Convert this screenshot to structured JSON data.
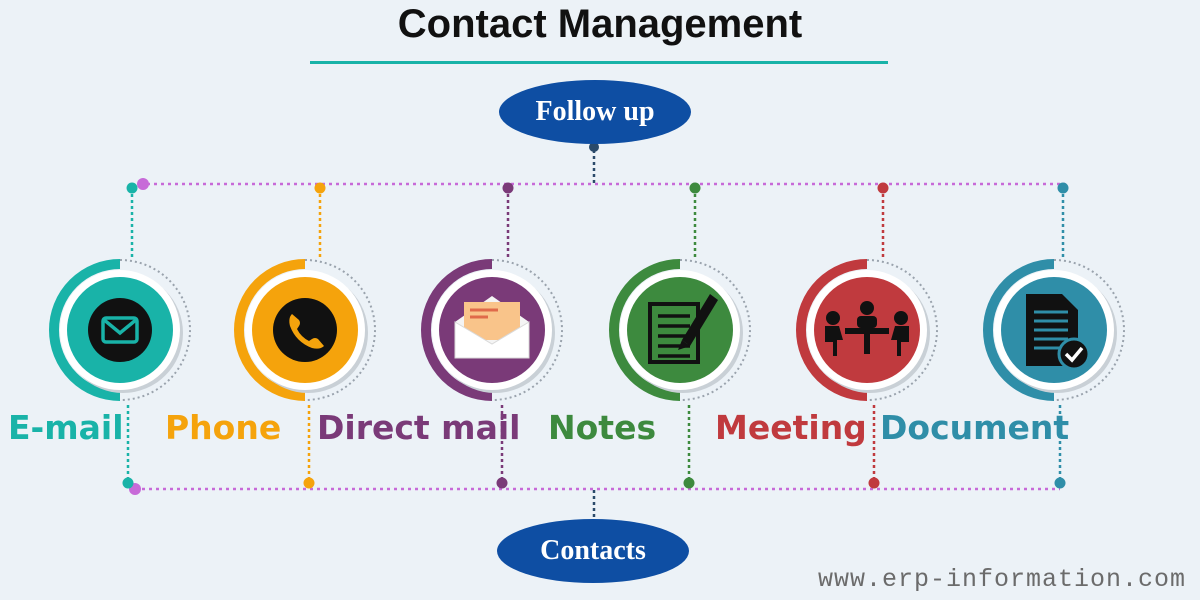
{
  "title": "Contact Management",
  "top_node": "Follow up",
  "bottom_node": "Contacts",
  "items": [
    {
      "label": "E-mail",
      "color": "#19b3a8",
      "icon": "envelope-icon"
    },
    {
      "label": "Phone",
      "color": "#f5a30c",
      "icon": "phone-icon"
    },
    {
      "label": "Direct mail",
      "color": "#7a3a78",
      "icon": "open-letter-icon"
    },
    {
      "label": "Notes",
      "color": "#3d8a3e",
      "icon": "notepad-pencil-icon"
    },
    {
      "label": "Meeting",
      "color": "#c03a3e",
      "icon": "meeting-table-icon"
    },
    {
      "label": "Document",
      "color": "#2f8ea8",
      "icon": "document-check-icon"
    }
  ],
  "connector_color": "#c76ad8",
  "watermark": "www.erp-information.com"
}
